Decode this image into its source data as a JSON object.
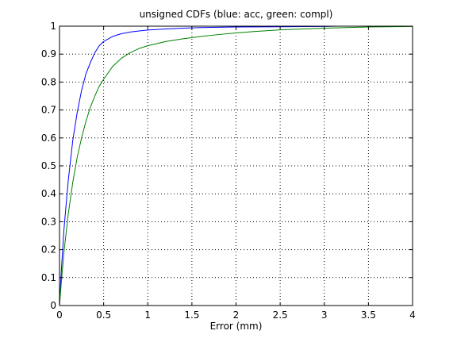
{
  "chart_data": {
    "type": "line",
    "title": "unsigned CDFs (blue: acc, green: compl)",
    "xlabel": "Error (mm)",
    "ylabel": "",
    "xlim": [
      0,
      4
    ],
    "ylim": [
      0,
      1
    ],
    "xticks": [
      0,
      0.5,
      1,
      1.5,
      2,
      2.5,
      3,
      3.5,
      4
    ],
    "xtick_labels": [
      "0",
      "0.5",
      "1",
      "1.5",
      "2",
      "2.5",
      "3",
      "3.5",
      "4"
    ],
    "yticks": [
      0,
      0.1,
      0.2,
      0.3,
      0.4,
      0.5,
      0.6,
      0.7,
      0.8,
      0.9,
      1
    ],
    "ytick_labels": [
      "0",
      "0.1",
      "0.2",
      "0.3",
      "0.4",
      "0.5",
      "0.6",
      "0.7",
      "0.8",
      "0.9",
      "1"
    ],
    "grid": true,
    "grid_style": "dotted",
    "legend": "none",
    "series": [
      {
        "color": "#0000ff",
        "x": [
          0,
          0.02,
          0.05,
          0.08,
          0.1,
          0.15,
          0.2,
          0.25,
          0.3,
          0.35,
          0.4,
          0.45,
          0.5,
          0.6,
          0.7,
          0.8,
          0.9,
          1.0,
          1.2,
          1.4,
          1.6,
          1.8,
          2.0,
          2.5,
          3.0,
          3.15
        ],
        "y": [
          0.0,
          0.12,
          0.27,
          0.38,
          0.45,
          0.59,
          0.69,
          0.77,
          0.83,
          0.87,
          0.905,
          0.93,
          0.945,
          0.963,
          0.973,
          0.979,
          0.983,
          0.986,
          0.99,
          0.993,
          0.995,
          0.996,
          0.997,
          0.998,
          0.999,
          1.0
        ]
      },
      {
        "color": "#008000",
        "x": [
          0,
          0.02,
          0.05,
          0.1,
          0.15,
          0.2,
          0.25,
          0.3,
          0.35,
          0.4,
          0.45,
          0.5,
          0.6,
          0.7,
          0.8,
          0.9,
          1.0,
          1.2,
          1.4,
          1.6,
          1.8,
          2.0,
          2.2,
          2.5,
          3.0,
          3.5,
          4.0
        ],
        "y": [
          0.0,
          0.08,
          0.19,
          0.33,
          0.44,
          0.53,
          0.6,
          0.66,
          0.71,
          0.75,
          0.785,
          0.81,
          0.855,
          0.885,
          0.905,
          0.92,
          0.93,
          0.945,
          0.955,
          0.963,
          0.97,
          0.976,
          0.981,
          0.987,
          0.993,
          0.997,
          0.999
        ]
      }
    ]
  }
}
